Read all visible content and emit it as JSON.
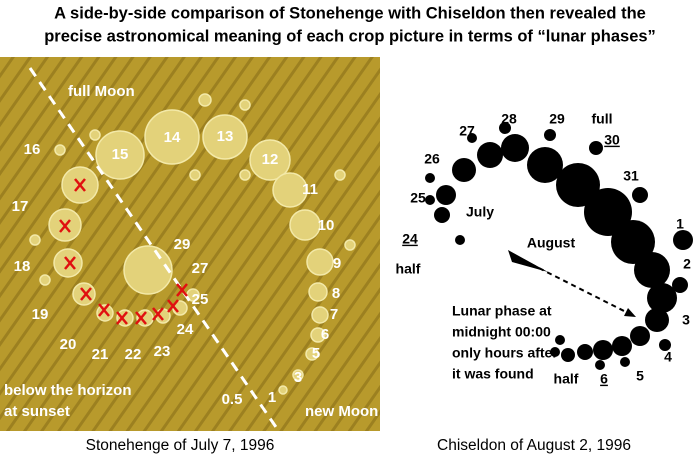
{
  "title": {
    "line1": "A side-by-side comparison of Stonehenge with Chiseldon then revealed the",
    "line2": "precise astronomical meaning of each crop picture in terms of “lunar phases”"
  },
  "left_panel": {
    "full_moon": "full Moon",
    "numbers": [
      "14",
      "13",
      "15",
      "12",
      "16",
      "11",
      "17",
      "10",
      "18",
      "9",
      "29",
      "27",
      "8",
      "19",
      "25",
      "7",
      "24",
      "20",
      "21",
      "22",
      "23",
      "6",
      "5",
      "3",
      "0.5",
      "1"
    ],
    "below_horizon": [
      "below the horizon",
      "at sunset"
    ],
    "new_moon": "new Moon",
    "caption": "Stonehenge of July 7, 1996"
  },
  "right_panel": {
    "labels": [
      "28",
      "29",
      "full",
      "27",
      "30",
      "26",
      "31",
      "July",
      "25",
      "1",
      "August",
      "24",
      "2",
      "half",
      "3",
      "4",
      "half",
      "6",
      "5"
    ],
    "note": [
      "Lunar phase at",
      "midnight 00:00",
      "only hours after",
      "it was found"
    ],
    "caption": "Chiseldon of August 2, 1996"
  }
}
